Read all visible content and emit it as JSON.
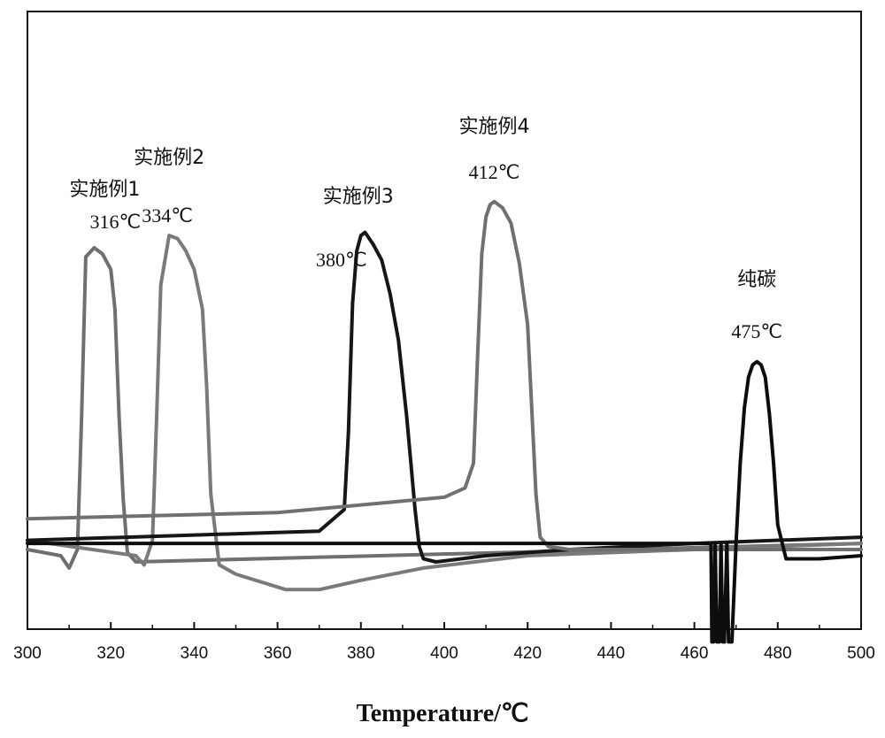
{
  "chart_data": {
    "type": "line",
    "xlabel": "Temperature/℃",
    "ylabel": "",
    "xlim": [
      300,
      500
    ],
    "x_ticks": [
      300,
      320,
      340,
      360,
      380,
      400,
      420,
      440,
      460,
      480,
      500
    ],
    "y_ticks_labeled": false,
    "grid": false,
    "legend": "none",
    "series": [
      {
        "label": "实施例1",
        "peak_label": "316℃",
        "peak_x": 316,
        "color": "#6f6f6f",
        "x": [
          300,
          308,
          310,
          312,
          313,
          314,
          316,
          318,
          320,
          321,
          322,
          323,
          324,
          326,
          500
        ],
        "y": [
          0.02,
          0.0,
          -0.04,
          0.02,
          0.45,
          0.97,
          1.0,
          0.98,
          0.93,
          0.8,
          0.45,
          0.18,
          0.01,
          -0.02,
          0.04
        ]
      },
      {
        "label": "实施例2",
        "peak_label": "334℃",
        "peak_x": 334,
        "color": "#7a7a7a",
        "x": [
          300,
          326,
          328,
          330,
          331,
          332,
          334,
          336,
          338,
          340,
          342,
          343,
          344,
          346,
          350,
          362,
          370,
          380,
          395,
          420,
          460,
          500
        ],
        "y": [
          0.05,
          0.0,
          -0.03,
          0.05,
          0.45,
          0.88,
          1.04,
          1.03,
          0.99,
          0.93,
          0.8,
          0.55,
          0.2,
          -0.03,
          -0.06,
          -0.11,
          -0.11,
          -0.08,
          -0.04,
          0.0,
          0.02,
          0.04
        ]
      },
      {
        "label": "实施例3",
        "peak_label": "380℃",
        "peak_x": 380,
        "color": "#161616",
        "x": [
          300,
          370,
          376,
          377,
          378,
          379,
          380,
          381,
          383,
          385,
          387,
          389,
          391,
          393,
          394,
          395,
          398,
          410,
          430,
          460,
          500
        ],
        "y": [
          0.05,
          0.08,
          0.15,
          0.4,
          0.82,
          0.99,
          1.04,
          1.05,
          1.01,
          0.96,
          0.85,
          0.7,
          0.45,
          0.15,
          0.03,
          -0.01,
          -0.02,
          0.0,
          0.02,
          0.04,
          0.06
        ]
      },
      {
        "label": "实施例4",
        "peak_label": "412℃",
        "peak_x": 412,
        "color": "#707070",
        "x": [
          300,
          360,
          400,
          405,
          407,
          408,
          409,
          410,
          411,
          412,
          414,
          416,
          418,
          420,
          422,
          423,
          425,
          430,
          450,
          500
        ],
        "y": [
          0.12,
          0.14,
          0.19,
          0.22,
          0.3,
          0.65,
          0.98,
          1.1,
          1.14,
          1.15,
          1.13,
          1.08,
          0.95,
          0.75,
          0.2,
          0.06,
          0.03,
          0.02,
          0.02,
          0.02
        ]
      },
      {
        "label": "纯碳",
        "peak_label": "475℃",
        "peak_x": 475,
        "color": "#0d0d0d",
        "x": [
          300,
          440,
          464,
          464.2,
          464.6,
          465,
          465.4,
          466,
          466.4,
          466.8,
          467.2,
          467.8,
          468.2,
          469,
          470,
          471,
          472,
          473,
          474,
          475,
          476,
          477,
          478,
          479,
          480,
          482,
          490,
          500
        ],
        "y": [
          0.04,
          0.04,
          0.04,
          -0.28,
          -0.28,
          0.04,
          -0.28,
          -0.28,
          0.04,
          -0.28,
          -0.28,
          0.04,
          -0.28,
          -0.28,
          0.04,
          0.3,
          0.48,
          0.58,
          0.62,
          0.63,
          0.62,
          0.58,
          0.46,
          0.3,
          0.1,
          -0.01,
          -0.01,
          0.0
        ]
      }
    ]
  }
}
